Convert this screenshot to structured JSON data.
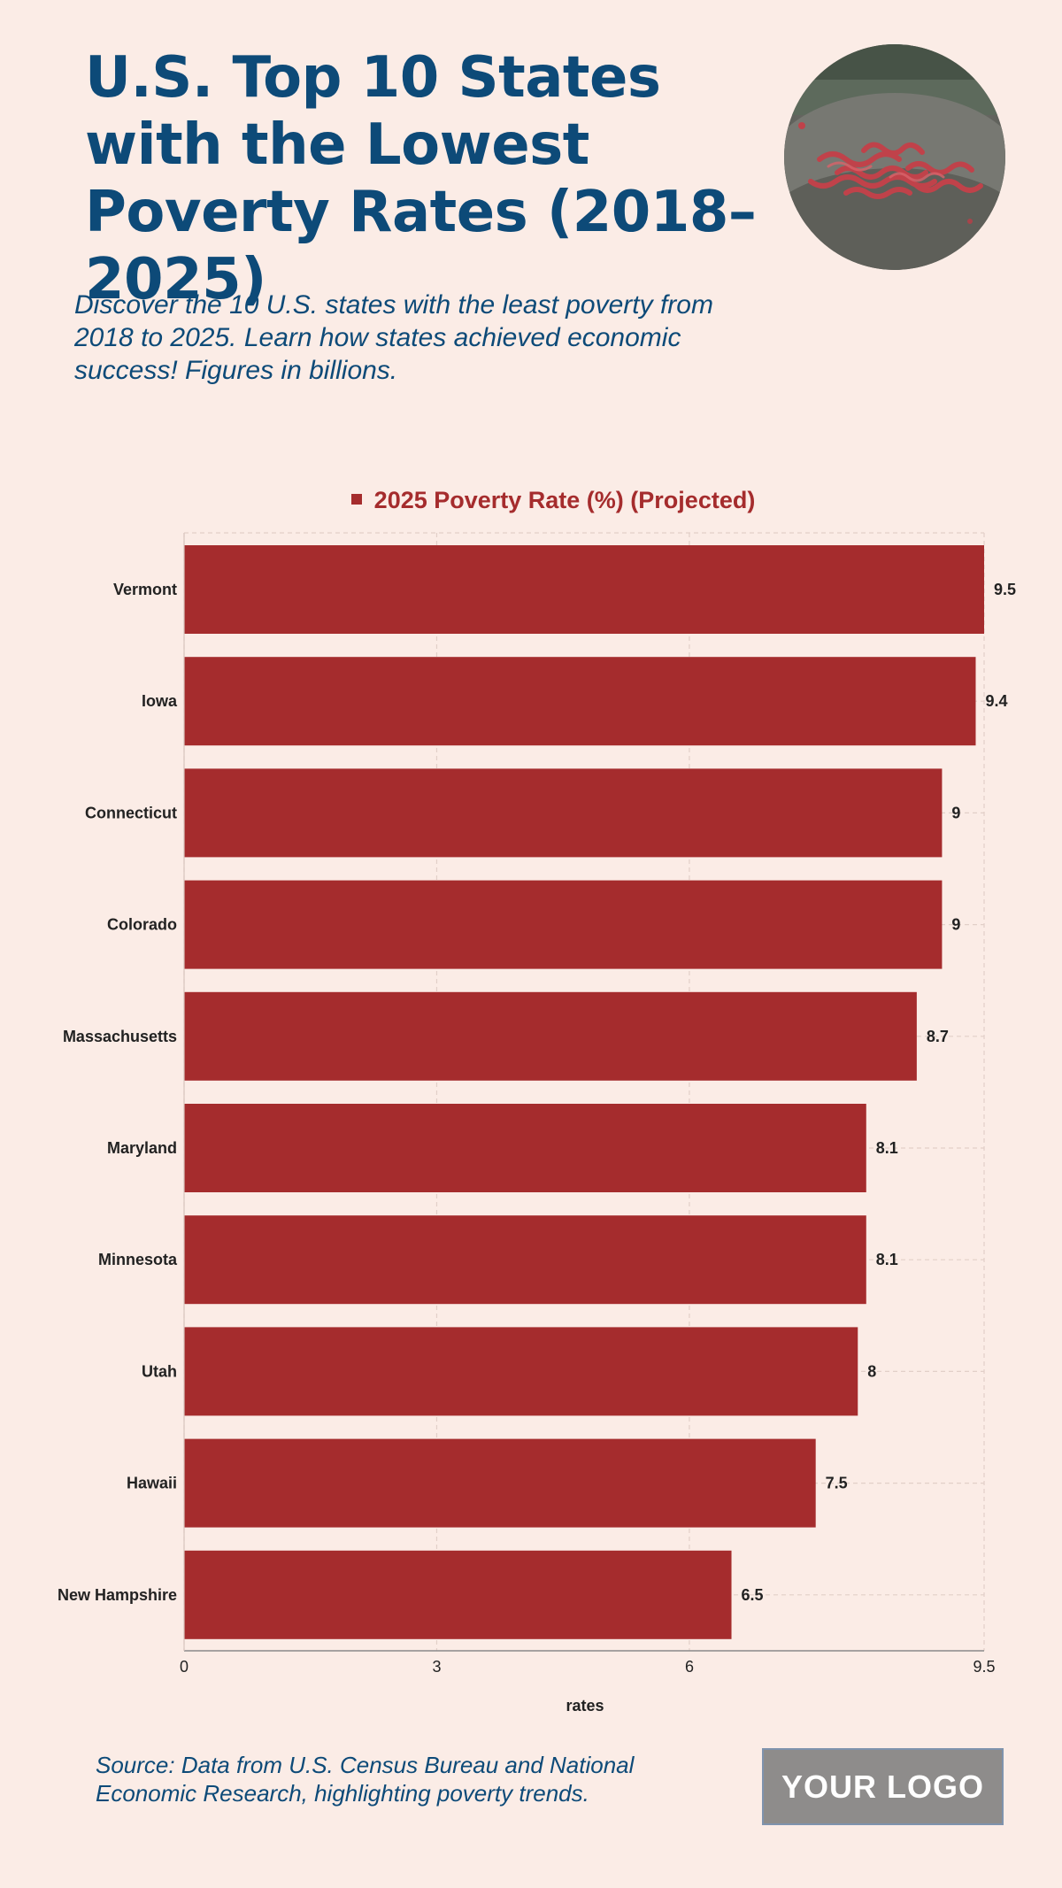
{
  "header": {
    "title": "U.S. Top 10 States with the Lowest Poverty Rates (2018–2025)",
    "subtitle": "Discover the 10 U.S. states with the least poverty from 2018 to 2025. Learn how states achieved economic success! Figures in billions."
  },
  "footer": {
    "source": "Source: Data from U.S. Census Bureau and National Economic Research, highlighting poverty trends.",
    "logo_text": "YOUR LOGO"
  },
  "colors": {
    "background": "#fbece6",
    "bar": "#a52c2d",
    "title": "#0d4a78"
  },
  "photo_icon": "pile-of-red-worms-on-rock-photo",
  "chart_data": {
    "type": "bar",
    "orientation": "horizontal",
    "categories": [
      "Vermont",
      "Iowa",
      "Connecticut",
      "Colorado",
      "Massachusetts",
      "Maryland",
      "Minnesota",
      "Utah",
      "Hawaii",
      "New Hampshire"
    ],
    "series": [
      {
        "name": "2025 Poverty Rate (%) (Projected)",
        "values": [
          9.5,
          9.4,
          9,
          9,
          8.7,
          8.1,
          8.1,
          8,
          7.5,
          6.5
        ]
      }
    ],
    "data_labels": [
      "9.5",
      "9.4",
      "9",
      "9",
      "8.7",
      "8.1",
      "8.1",
      "8",
      "7.5",
      "6.5"
    ],
    "xlabel": "rates",
    "ylabel": "",
    "xlim": [
      0,
      9.5
    ],
    "xticks": [
      0,
      3,
      6,
      9.5
    ],
    "xtick_labels": [
      "0",
      "3",
      "6",
      "9.5"
    ],
    "grid": true,
    "legend_position": "top-center"
  }
}
